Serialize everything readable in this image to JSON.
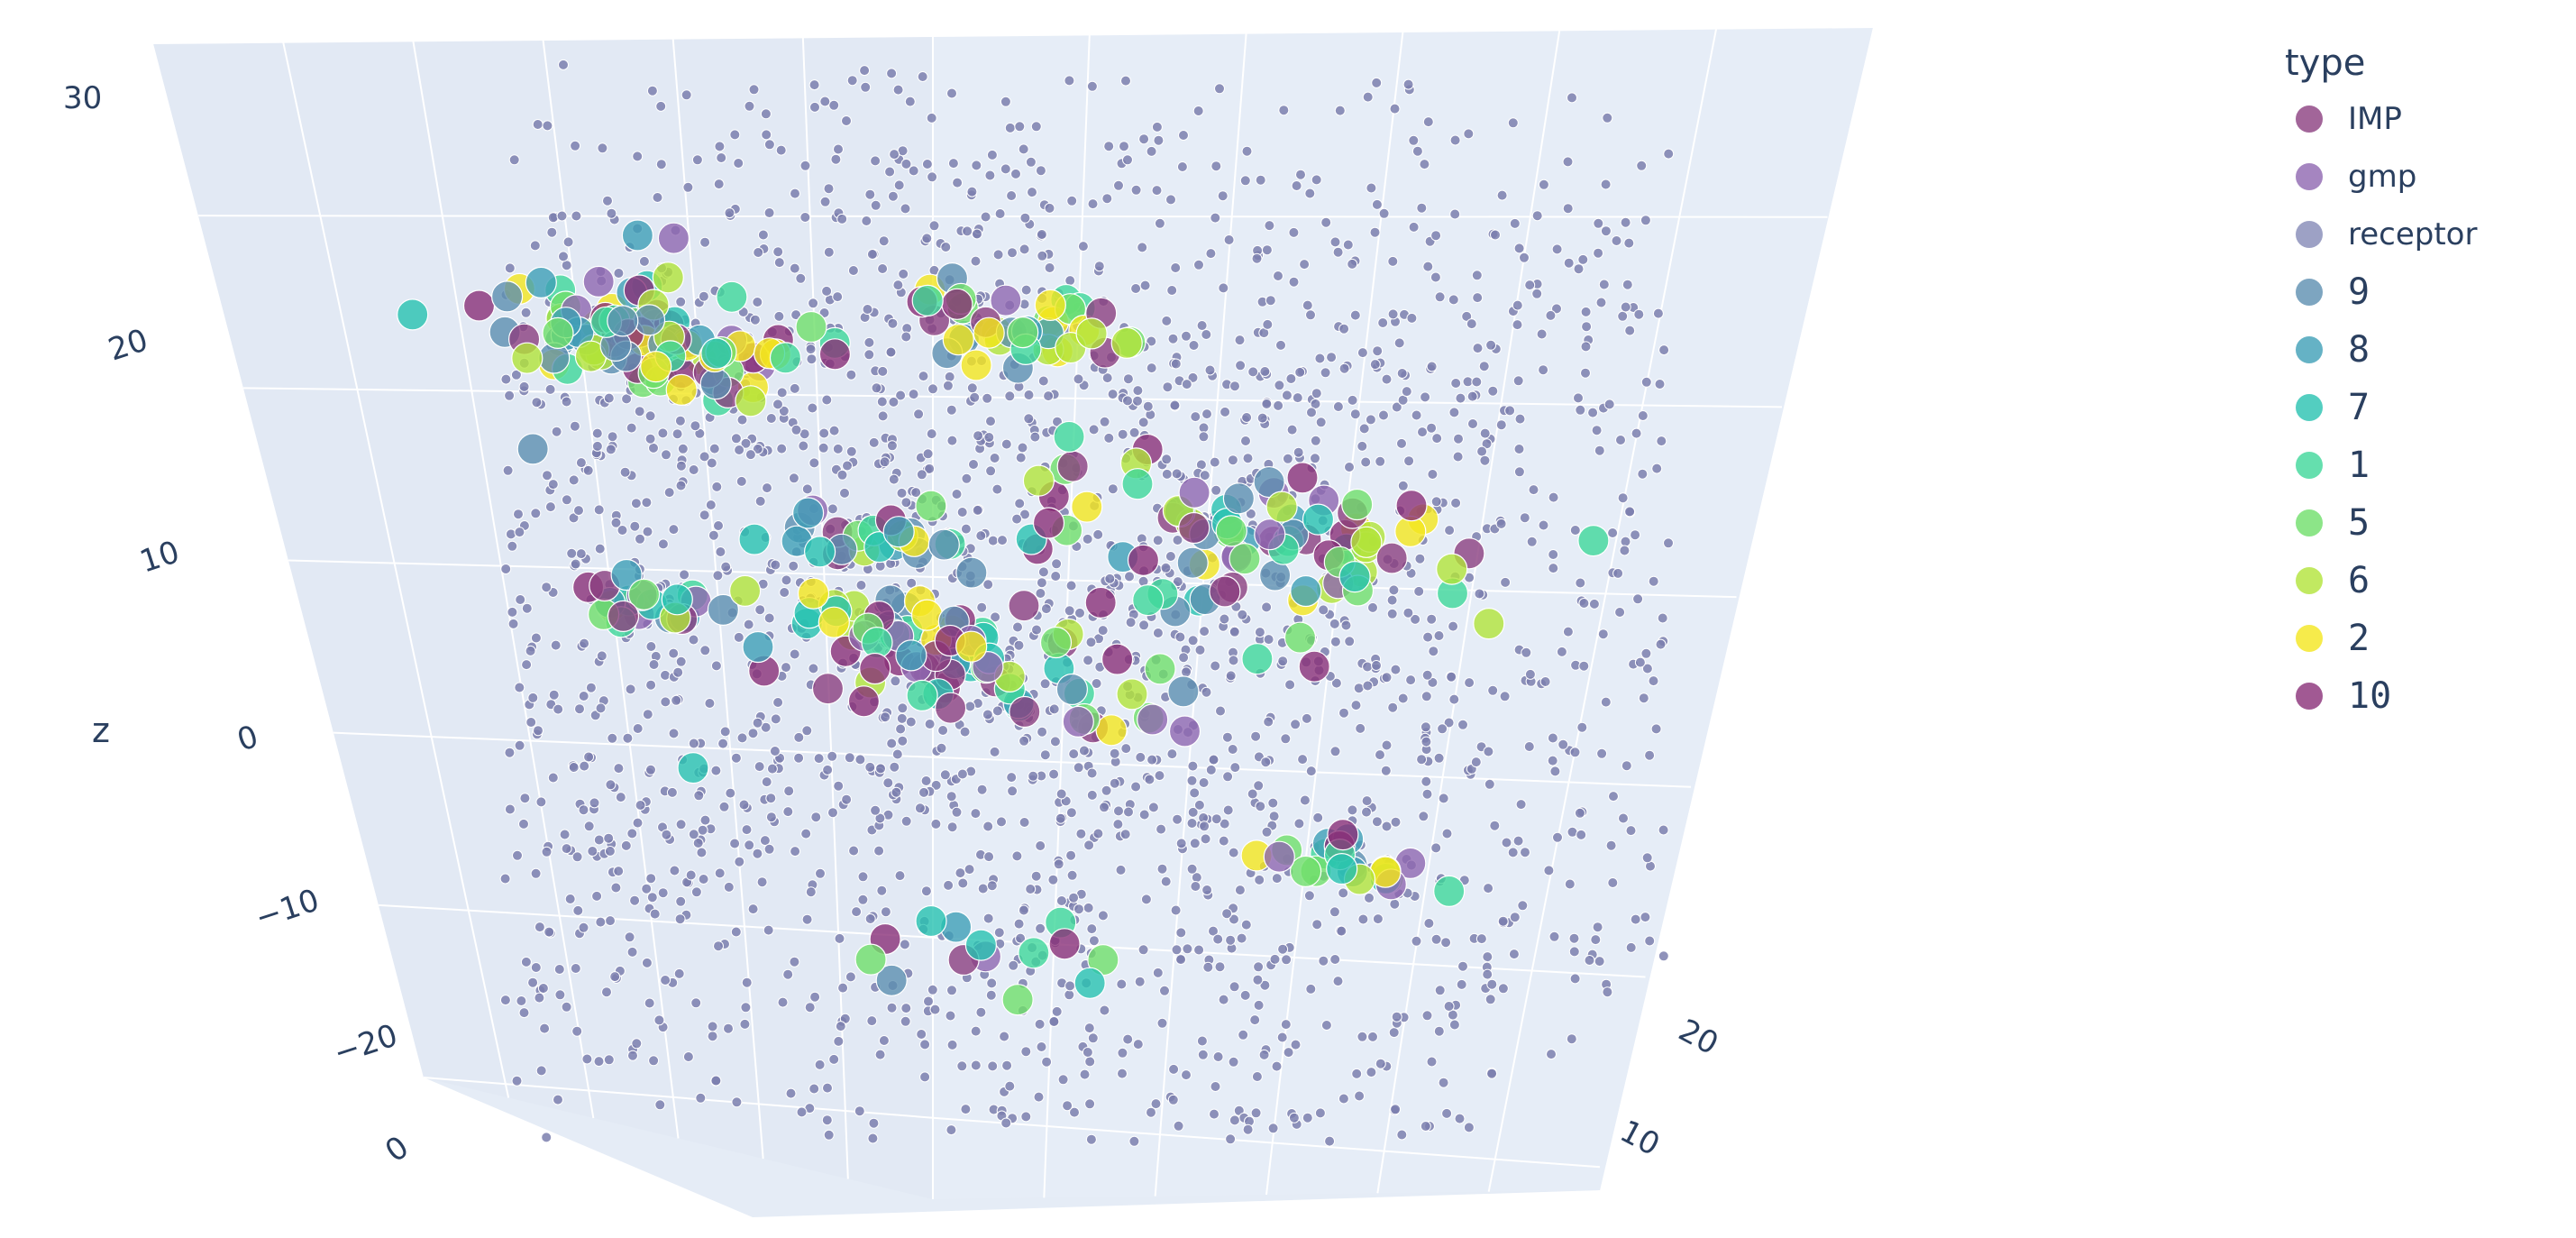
{
  "chart_data": {
    "type": "scatter3d",
    "title": "",
    "legend": {
      "title": "type",
      "placement": "right",
      "entries": [
        {
          "name": "IMP",
          "color": "#8b3f7f"
        },
        {
          "name": "gmp",
          "color": "#8e67b0"
        },
        {
          "name": "receptor",
          "color": "#8489b6"
        },
        {
          "name": "9",
          "color": "#5c8fb0"
        },
        {
          "name": "8",
          "color": "#3f9fb6"
        },
        {
          "name": "7",
          "color": "#28c2b0"
        },
        {
          "name": "1",
          "color": "#3fd79a"
        },
        {
          "name": "5",
          "color": "#6fde6a"
        },
        {
          "name": "6",
          "color": "#b2e43a"
        },
        {
          "name": "2",
          "color": "#f4e61e"
        },
        {
          "name": "10",
          "color": "#8a2f78"
        }
      ]
    },
    "axes": {
      "z": {
        "label": "z",
        "ticks": [
          "30",
          "20",
          "10",
          "0",
          "−10",
          "−20"
        ],
        "range": [
          -25,
          32
        ]
      },
      "x": {
        "label": "",
        "ticks": [
          "0"
        ]
      },
      "y": {
        "label": "",
        "ticks": [
          "20",
          "10"
        ]
      }
    },
    "grid": true,
    "background": "#e5ecf6",
    "receptor_cloud": {
      "count": 2600,
      "color": "#7b7fae",
      "note_x_range": [
        -25,
        25
      ],
      "note_y_range": [
        -25,
        25
      ],
      "note_z_range": [
        -22,
        28
      ]
    },
    "clusters": [
      {
        "center": [
          -12,
          8,
          20
        ],
        "spread": 3.5,
        "count": 95
      },
      {
        "center": [
          -14,
          4,
          2
        ],
        "spread": 1.5,
        "count": 22
      },
      {
        "center": [
          -4,
          0,
          1
        ],
        "spread": 3.5,
        "count": 55
      },
      {
        "center": [
          3,
          2,
          0
        ],
        "spread": 4.0,
        "count": 30
      },
      {
        "center": [
          -2,
          6,
          10
        ],
        "spread": 1.5,
        "count": 22
      },
      {
        "center": [
          12,
          2,
          12
        ],
        "spread": 5.0,
        "count": 85
      },
      {
        "center": [
          8,
          12,
          28
        ],
        "spread": 3.0,
        "count": 40
      },
      {
        "center": [
          14,
          -4,
          -10
        ],
        "spread": 2.0,
        "count": 22
      },
      {
        "center": [
          -6,
          -8,
          -22
        ],
        "spread": 2.5,
        "count": 14
      },
      {
        "center": [
          -16,
          0,
          22
        ],
        "spread": 0.5,
        "count": 2
      },
      {
        "center": [
          -18,
          6,
          11
        ],
        "spread": 0.3,
        "count": 1
      },
      {
        "center": [
          -16,
          -4,
          -12
        ],
        "spread": 0.3,
        "count": 1
      },
      {
        "center": [
          2,
          8,
          14
        ],
        "spread": 0.3,
        "count": 1
      }
    ]
  }
}
